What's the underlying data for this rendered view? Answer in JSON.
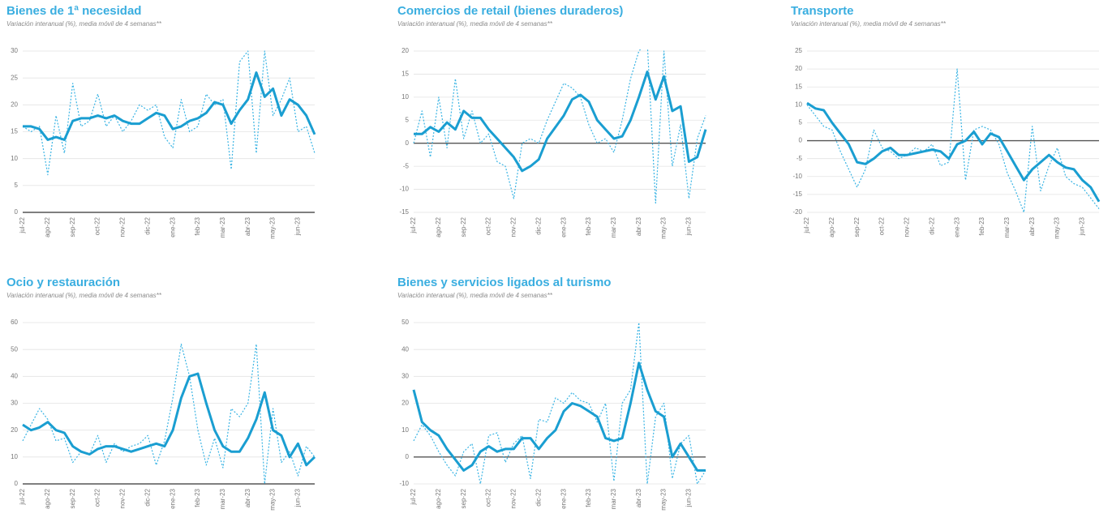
{
  "chart_data": [
    {
      "type": "line",
      "title": "Bienes de 1ª necesidad",
      "subtitle": "Variación interanual (%), media móvil de 4 semanas**",
      "categories": [
        "jul-22",
        null,
        null,
        "ago-22",
        null,
        null,
        "sep-22",
        null,
        null,
        "oct-22",
        null,
        null,
        "nov-22",
        null,
        null,
        "dic-22",
        null,
        null,
        "ene-23",
        null,
        null,
        "feb-23",
        null,
        null,
        "mar-23",
        null,
        null,
        "abr-23",
        null,
        null,
        "may-23",
        null,
        null,
        "jun-23",
        null,
        null
      ],
      "ylim": [
        0,
        30
      ],
      "yticks": [
        0,
        5,
        10,
        15,
        20,
        25,
        30
      ],
      "grid": true,
      "series": [
        {
          "color": "#1a9ed1",
          "line_style": "solid",
          "values": [
            16,
            16,
            15.5,
            13.5,
            14,
            13.5,
            17,
            17.5,
            17.5,
            18,
            17.5,
            18,
            17,
            16.5,
            16.5,
            17.5,
            18.5,
            18,
            15.5,
            16,
            17,
            17.5,
            18.5,
            20.5,
            20,
            16.5,
            19,
            21,
            26,
            21.5,
            23,
            18,
            21,
            20,
            18,
            14.5
          ]
        },
        {
          "color": "#3ab4e4",
          "line_style": "dotted",
          "values": [
            16,
            15,
            16,
            7,
            18,
            11,
            24,
            16,
            17,
            22,
            16,
            18,
            15,
            17,
            20,
            19,
            20,
            14,
            12,
            21,
            15,
            16,
            22,
            20,
            21,
            8,
            28,
            30,
            11,
            30,
            18,
            21,
            25,
            15,
            16,
            11
          ]
        }
      ]
    },
    {
      "type": "line",
      "title": "Comercios de retail (bienes duraderos)",
      "subtitle": "Variación interanual (%), media móvil de 4 semanas**",
      "categories": [
        "jul-22",
        null,
        null,
        "ago-22",
        null,
        null,
        "sep-22",
        null,
        null,
        "oct-22",
        null,
        null,
        "nov-22",
        null,
        null,
        "dic-22",
        null,
        null,
        "ene-23",
        null,
        null,
        "feb-23",
        null,
        null,
        "mar-23",
        null,
        null,
        "abr-23",
        null,
        null,
        "may-23",
        null,
        null,
        "jun-23",
        null,
        null
      ],
      "ylim": [
        -15,
        20
      ],
      "yticks": [
        -15,
        -10,
        -5,
        0,
        5,
        10,
        15,
        20
      ],
      "grid": true,
      "series": [
        {
          "color": "#1a9ed1",
          "line_style": "solid",
          "values": [
            2,
            2,
            3.5,
            2.5,
            4.5,
            3,
            7,
            5.5,
            5.5,
            3,
            1,
            -1,
            -3,
            -6,
            -5,
            -3.5,
            1,
            3.5,
            6,
            9.5,
            10.5,
            9,
            5,
            3,
            1,
            1.5,
            5,
            10,
            15.5,
            9.5,
            14.5,
            7,
            8,
            -4,
            -3,
            3
          ]
        },
        {
          "color": "#3ab4e4",
          "line_style": "dotted",
          "values": [
            0,
            7,
            -3,
            10,
            -1,
            14,
            1,
            7,
            0,
            2,
            -4,
            -5,
            -12,
            0,
            1,
            0,
            5,
            9,
            13,
            12,
            10,
            4,
            0,
            1,
            -2,
            5,
            14,
            20,
            22,
            -13,
            20,
            -5,
            4,
            -12,
            1,
            6
          ]
        }
      ]
    },
    {
      "type": "line",
      "title": "Transporte",
      "subtitle": "Variación interanual (%), media móvil de 4 semanas**",
      "categories": [
        "jul-22",
        null,
        null,
        "ago-22",
        null,
        null,
        "sep-22",
        null,
        null,
        "oct-22",
        null,
        null,
        "nov-22",
        null,
        null,
        "dic-22",
        null,
        null,
        "ene-23",
        null,
        null,
        "feb-23",
        null,
        null,
        "mar-23",
        null,
        null,
        "abr-23",
        null,
        null,
        "may-23",
        null,
        null,
        "jun-23",
        null,
        null
      ],
      "ylim": [
        -20,
        25
      ],
      "yticks": [
        -20,
        -15,
        -10,
        -5,
        0,
        5,
        10,
        15,
        20,
        25
      ],
      "grid": true,
      "series": [
        {
          "color": "#1a9ed1",
          "line_style": "solid",
          "values": [
            10.5,
            9,
            8.5,
            5,
            2,
            -1,
            -6,
            -6.5,
            -5,
            -3,
            -2,
            -4,
            -4,
            -3.5,
            -3,
            -2.5,
            -3,
            -5,
            -1,
            0,
            2.5,
            -1,
            2,
            1,
            -3,
            -7,
            -11,
            -8,
            -6,
            -4,
            -6,
            -7.5,
            -8,
            -11,
            -13,
            -17
          ]
        },
        {
          "color": "#3ab4e4",
          "line_style": "dotted",
          "values": [
            10,
            7,
            4,
            3,
            -3,
            -8,
            -13,
            -8,
            3,
            -2,
            -3,
            -5,
            -4,
            -2,
            -3,
            -1,
            -7,
            -6,
            20,
            -11,
            3,
            4,
            3,
            -1,
            -9,
            -14,
            -20,
            4,
            -14,
            -7,
            -2,
            -10,
            -12,
            -13,
            -16,
            -19
          ]
        }
      ]
    },
    {
      "type": "line",
      "title": "Ocio y restauración",
      "subtitle": "Variación interanual (%), media móvil de 4 semanas**",
      "categories": [
        "jul-22",
        null,
        null,
        "ago-22",
        null,
        null,
        "sep-22",
        null,
        null,
        "oct-22",
        null,
        null,
        "nov-22",
        null,
        null,
        "dic-22",
        null,
        null,
        "ene-23",
        null,
        null,
        "feb-23",
        null,
        null,
        "mar-23",
        null,
        null,
        "abr-23",
        null,
        null,
        "may-23",
        null,
        null,
        "jun-23",
        null,
        null
      ],
      "ylim": [
        0,
        60
      ],
      "yticks": [
        0,
        10,
        20,
        30,
        40,
        50,
        60
      ],
      "grid": true,
      "series": [
        {
          "color": "#1a9ed1",
          "line_style": "solid",
          "values": [
            22,
            20,
            21,
            23,
            20,
            19,
            14,
            12,
            11,
            13,
            14,
            14,
            13,
            12,
            13,
            14,
            15,
            14,
            20,
            32,
            40,
            41,
            30,
            20,
            14,
            12,
            12,
            17,
            24,
            34,
            20,
            18,
            10,
            15,
            7,
            10
          ]
        },
        {
          "color": "#3ab4e4",
          "line_style": "dotted",
          "values": [
            16,
            22,
            28,
            24,
            16,
            17,
            8,
            12,
            11,
            18,
            8,
            15,
            12,
            14,
            15,
            18,
            7,
            16,
            32,
            52,
            40,
            20,
            7,
            17,
            6,
            28,
            25,
            30,
            52,
            0,
            28,
            8,
            12,
            3,
            14,
            10
          ]
        }
      ]
    },
    {
      "type": "line",
      "title": "Bienes y servicios ligados al turismo",
      "subtitle": "Variación interanual (%), media móvil de 4 semanas**",
      "categories": [
        "jul-22",
        null,
        null,
        "ago-22",
        null,
        null,
        "sep-22",
        null,
        null,
        "oct-22",
        null,
        null,
        "nov-22",
        null,
        null,
        "dic-22",
        null,
        null,
        "ene-23",
        null,
        null,
        "feb-23",
        null,
        null,
        "mar-23",
        null,
        null,
        "abr-23",
        null,
        null,
        "may-23",
        null,
        null,
        "jun-23",
        null,
        null
      ],
      "ylim": [
        -10,
        50
      ],
      "yticks": [
        -10,
        0,
        10,
        20,
        30,
        40,
        50
      ],
      "grid": true,
      "series": [
        {
          "color": "#1a9ed1",
          "line_style": "solid",
          "values": [
            25,
            13,
            10,
            8,
            3,
            -1,
            -5,
            -3,
            2,
            4,
            2,
            3,
            3,
            7,
            7,
            3,
            7,
            10,
            17,
            20,
            19,
            17,
            15,
            7,
            6,
            7,
            20,
            35,
            25,
            17,
            15,
            0,
            5,
            0,
            -5,
            -5
          ]
        },
        {
          "color": "#3ab4e4",
          "line_style": "dotted",
          "values": [
            6,
            12,
            8,
            2,
            -3,
            -7,
            2,
            5,
            -10,
            8,
            9,
            -2,
            5,
            8,
            -8,
            14,
            13,
            22,
            20,
            24,
            21,
            20,
            13,
            20,
            -9,
            20,
            25,
            50,
            -10,
            15,
            20,
            -8,
            5,
            8,
            -10,
            -5
          ]
        }
      ]
    }
  ]
}
